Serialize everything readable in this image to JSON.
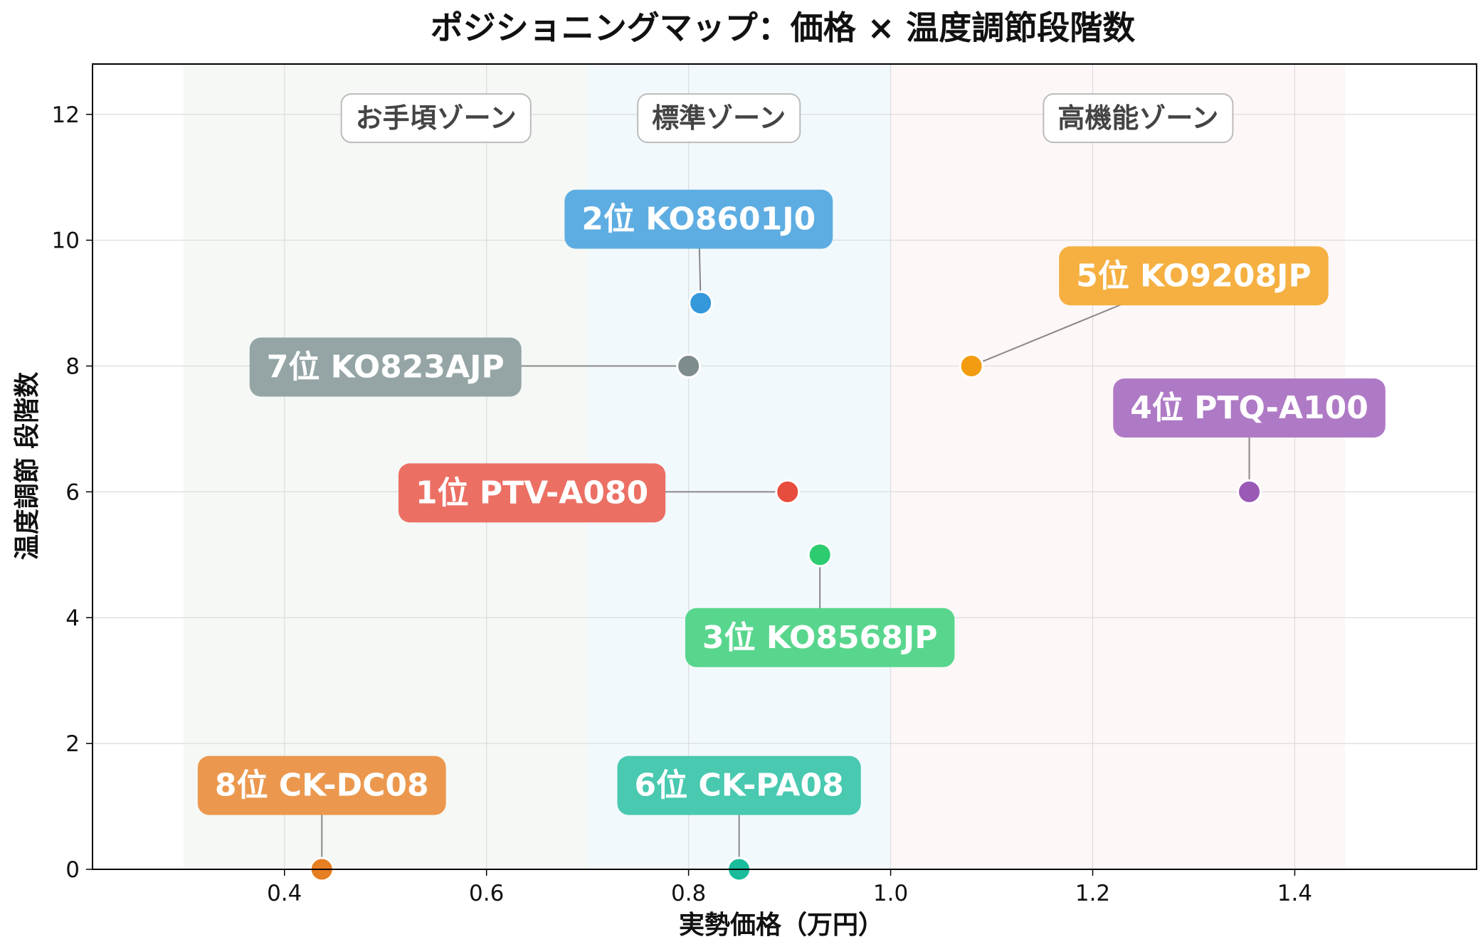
{
  "chart_data": {
    "type": "scatter",
    "title": "ポジショニングマップ：価格 × 温度調節段階数",
    "xlabel": "実勢価格（万円）",
    "ylabel": "温度調節 段階数",
    "xlim": [
      0.21,
      1.58
    ],
    "ylim": [
      0,
      12.8
    ],
    "xticks": [
      "0.4",
      "0.6",
      "0.8",
      "1.0",
      "1.2",
      "1.4"
    ],
    "xtick_values": [
      0.4,
      0.6,
      0.8,
      1.0,
      1.2,
      1.4
    ],
    "yticks": [
      "0",
      "2",
      "4",
      "6",
      "8",
      "10",
      "12"
    ],
    "ytick_values": [
      0,
      2,
      4,
      6,
      8,
      10,
      12
    ],
    "grid": true,
    "zones": [
      {
        "label": "お手頃ゾーン",
        "x_range": [
          0.3,
          0.7
        ],
        "color": "#e8efe6"
      },
      {
        "label": "標準ゾーン",
        "x_range": [
          0.7,
          1.0
        ],
        "color": "#e3f1fb"
      },
      {
        "label": "高機能ゾーン",
        "x_range": [
          1.0,
          1.45
        ],
        "color": "#fdeeee"
      }
    ],
    "points": [
      {
        "label": "1位 PTV-A080",
        "x": 0.898,
        "y": 6,
        "color": "#e74c3c",
        "label_x": 0.645,
        "label_y": 6.0,
        "label_color": "#ec6f64"
      },
      {
        "label": "2位 KO8601J0",
        "x": 0.812,
        "y": 9,
        "color": "#3498db",
        "label_x": 0.81,
        "label_y": 10.35,
        "label_color": "#5dade2"
      },
      {
        "label": "3位 KO8568JP",
        "x": 0.93,
        "y": 5,
        "color": "#2ecc71",
        "label_x": 0.93,
        "label_y": 3.7,
        "label_color": "#58d68d"
      },
      {
        "label": "4位 PTQ-A100",
        "x": 1.355,
        "y": 6,
        "color": "#9b59b6",
        "label_x": 1.355,
        "label_y": 7.35,
        "label_color": "#af7ac5"
      },
      {
        "label": "5位 KO9208JP",
        "x": 1.08,
        "y": 8,
        "color": "#f39c12",
        "label_x": 1.3,
        "label_y": 9.45,
        "label_color": "#f5b041"
      },
      {
        "label": "6位 CK-PA08",
        "x": 0.85,
        "y": 0,
        "color": "#1abc9c",
        "label_x": 0.85,
        "label_y": 1.35,
        "label_color": "#48c9b0"
      },
      {
        "label": "7位 KO823AJP",
        "x": 0.8,
        "y": 8,
        "color": "#7f8c8d",
        "label_x": 0.5,
        "label_y": 8.0,
        "label_color": "#95a5a6"
      },
      {
        "label": "8位 CK-DC08",
        "x": 0.437,
        "y": 0,
        "color": "#e67e22",
        "label_x": 0.437,
        "label_y": 1.35,
        "label_color": "#eb984e"
      }
    ]
  }
}
